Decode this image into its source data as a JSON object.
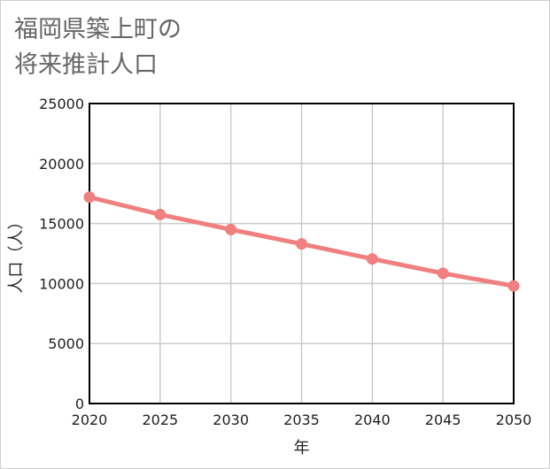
{
  "title_lines": [
    "福岡県築上町の",
    "将来推計人口"
  ],
  "chart_data": {
    "type": "line",
    "title": "福岡県築上町の将来推計人口",
    "xlabel": "年",
    "ylabel": "人口（人）",
    "x": [
      2020,
      2025,
      2030,
      2035,
      2040,
      2045,
      2050
    ],
    "series": [
      {
        "name": "人口",
        "values": [
          17200,
          15750,
          14500,
          13300,
          12050,
          10850,
          9800
        ]
      }
    ],
    "xlim": [
      2020,
      2050
    ],
    "ylim": [
      0,
      25000
    ],
    "yticks": [
      0,
      5000,
      10000,
      15000,
      20000,
      25000
    ],
    "xticks": [
      2020,
      2025,
      2030,
      2035,
      2040,
      2045,
      2050
    ],
    "grid": true,
    "line_color": "#f08080",
    "grid_color": "#cccccc"
  }
}
